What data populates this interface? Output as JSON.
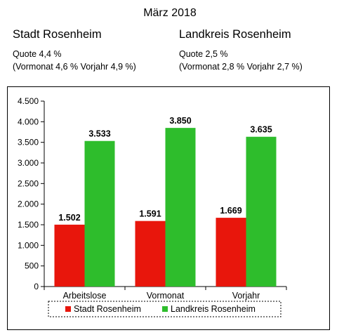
{
  "header": {
    "title": "März 2018",
    "left": {
      "name": "Stadt Rosenheim",
      "quote": "Quote 4,4 %",
      "prev": "(Vormonat 4,6 % Vorjahr  4,9 %)"
    },
    "right": {
      "name": "Landkreis Rosenheim",
      "quote": "Quote 2,5 %",
      "prev": "(Vormonat 2,8 % Vorjahr 2,7 %)"
    }
  },
  "chart_data": {
    "type": "bar",
    "categories": [
      "Arbeitslose",
      "Vormonat",
      "Vorjahr"
    ],
    "series": [
      {
        "name": "Stadt Rosenheim",
        "color": "#e8160c",
        "values": [
          1502,
          1591,
          1669
        ],
        "labels": [
          "1.502",
          "1.591",
          "1.669"
        ]
      },
      {
        "name": "Landkreis Rosenheim",
        "color": "#2ebd2c",
        "values": [
          3533,
          3850,
          3635
        ],
        "labels": [
          "3.533",
          "3.850",
          "3.635"
        ]
      }
    ],
    "yticks": [
      0,
      500,
      1000,
      1500,
      2000,
      2500,
      3000,
      3500,
      4000,
      4500
    ],
    "ytick_labels": [
      "0",
      "500",
      "1.000",
      "1.500",
      "2.000",
      "2.500",
      "3.000",
      "3.500",
      "4.000",
      "4.500"
    ],
    "ylim": [
      0,
      4500
    ],
    "grid": false,
    "legend": "bottom"
  }
}
